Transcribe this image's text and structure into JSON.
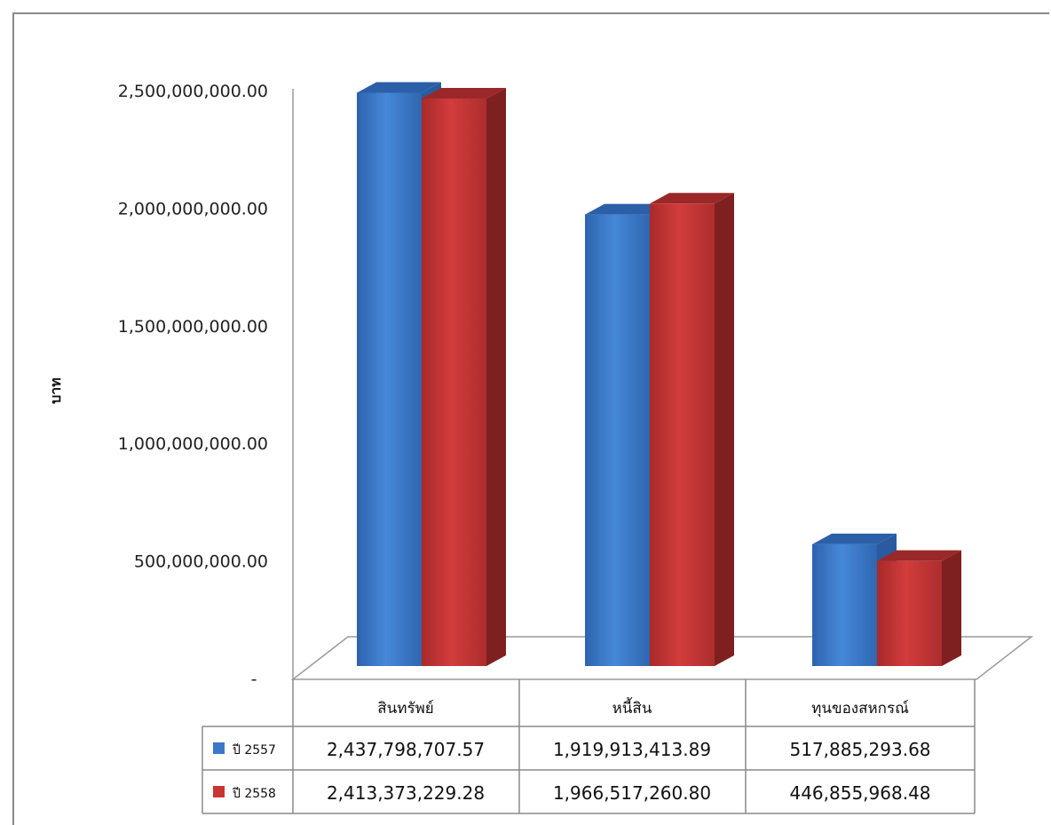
{
  "chart_data": {
    "type": "bar",
    "ylabel": "บาท",
    "ylim": [
      0,
      2500000000
    ],
    "ytick_labels": [
      "-",
      "500,000,000.00",
      "1,000,000,000.00",
      "1,500,000,000.00",
      "2,000,000,000.00",
      "2,500,000,000.00"
    ],
    "categories": [
      "สินทรัพย์",
      "หนี้สิน",
      "ทุนของสหกรณ์"
    ],
    "series": [
      {
        "name": "ปี 2557",
        "color": "#3a78c9",
        "values": [
          2437798707.57,
          1919913413.89,
          517885293.68
        ],
        "labels": [
          "2,437,798,707.57",
          "1,919,913,413.89",
          "517,885,293.68"
        ]
      },
      {
        "name": "ปี 2558",
        "color": "#c93535",
        "values": [
          2413373229.28,
          1966517260.8,
          446855968.48
        ],
        "labels": [
          "2,413,373,229.28",
          "1,966,517,260.80",
          "446,855,968.48"
        ]
      }
    ],
    "grid": false,
    "legend": "data-table"
  }
}
